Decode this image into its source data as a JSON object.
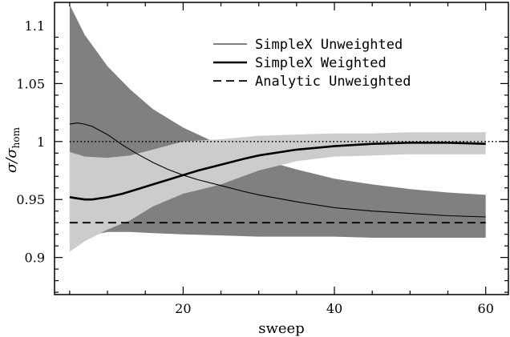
{
  "chart_data": {
    "type": "line",
    "xlabel": "sweep",
    "ylabel": "σ/σ",
    "ylabel_sub": "hom",
    "xlim": [
      3,
      63
    ],
    "ylim": [
      0.868,
      1.12
    ],
    "x_ticks": [
      20,
      40,
      60
    ],
    "y_ticks": [
      0.9,
      0.95,
      1,
      1.05,
      1.1
    ],
    "y_tick_labels": [
      "0.9",
      "0.95",
      "1",
      "1.05",
      "1.1"
    ],
    "reference_line": {
      "y": 1.0,
      "style": "dotted"
    },
    "bands": [
      {
        "description": "Unweighted spread",
        "color": "#808080",
        "x": [
          5,
          7,
          10,
          13,
          16,
          20,
          25,
          30,
          35,
          40,
          45,
          50,
          55,
          60
        ],
        "upper": [
          1.118,
          1.092,
          1.065,
          1.045,
          1.028,
          1.012,
          0.997,
          0.985,
          0.976,
          0.968,
          0.963,
          0.959,
          0.956,
          0.954
        ],
        "lower": [
          0.912,
          0.918,
          0.922,
          0.922,
          0.921,
          0.92,
          0.919,
          0.918,
          0.918,
          0.918,
          0.917,
          0.917,
          0.917,
          0.917
        ]
      },
      {
        "description": "Weighted spread",
        "color": "#cccccc",
        "x": [
          5,
          7,
          10,
          13,
          16,
          20,
          25,
          30,
          35,
          40,
          45,
          50,
          55,
          60
        ],
        "upper": [
          0.991,
          0.987,
          0.986,
          0.988,
          0.993,
          1.0,
          1.002,
          1.005,
          1.006,
          1.007,
          1.007,
          1.008,
          1.008,
          1.008
        ],
        "lower": [
          0.905,
          0.914,
          0.924,
          0.932,
          0.944,
          0.955,
          0.963,
          0.975,
          0.983,
          0.987,
          0.988,
          0.989,
          0.989,
          0.989
        ]
      }
    ],
    "series": [
      {
        "name": "SimpleX Unweighted",
        "style": "thin-solid",
        "x": [
          5,
          6,
          7,
          8,
          10,
          12,
          14,
          16,
          18,
          20,
          22,
          25,
          28,
          30,
          35,
          40,
          45,
          50,
          55,
          60
        ],
        "values": [
          1.015,
          1.016,
          1.015,
          1.013,
          1.006,
          0.997,
          0.989,
          0.982,
          0.976,
          0.971,
          0.967,
          0.962,
          0.957,
          0.954,
          0.948,
          0.943,
          0.94,
          0.938,
          0.936,
          0.935
        ]
      },
      {
        "name": "SimpleX Weighted",
        "style": "thick-solid",
        "x": [
          5,
          6,
          7,
          8,
          10,
          12,
          14,
          16,
          18,
          20,
          22,
          25,
          28,
          30,
          35,
          40,
          45,
          50,
          55,
          60
        ],
        "values": [
          0.952,
          0.951,
          0.95,
          0.95,
          0.952,
          0.955,
          0.959,
          0.963,
          0.967,
          0.971,
          0.975,
          0.98,
          0.985,
          0.988,
          0.993,
          0.996,
          0.998,
          0.999,
          0.999,
          0.998
        ]
      },
      {
        "name": "Analytic Unweighted",
        "style": "dashed",
        "x": [
          5,
          60
        ],
        "values": [
          0.93,
          0.93
        ]
      }
    ],
    "legend": {
      "placement": "top-right"
    },
    "grid": false
  }
}
